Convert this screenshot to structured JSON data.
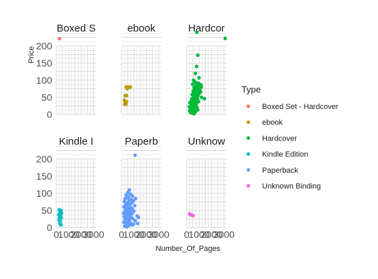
{
  "chart_data": {
    "type": "scatter",
    "xlabel": "Number_Of_Pages",
    "ylabel": "Price",
    "xlim": [
      0,
      3200
    ],
    "ylim": [
      0,
      240
    ],
    "yticks": [
      0,
      50,
      100,
      150,
      200
    ],
    "xtick_labels_shown": [
      "0",
      "1000",
      "2000",
      "3000"
    ],
    "grid": true,
    "legend_title": "Type",
    "legend_position": "right",
    "panels": [
      {
        "name": "Boxed Set - Hardcover",
        "strip": "Boxed S",
        "color": "#F8766D",
        "points": [
          [
            260,
            221
          ]
        ]
      },
      {
        "name": "ebook",
        "strip": "ebook",
        "color": "#B79F00",
        "points": [
          [
            380,
            80
          ],
          [
            500,
            80
          ],
          [
            600,
            80
          ],
          [
            720,
            80
          ],
          [
            480,
            75
          ],
          [
            300,
            55
          ],
          [
            420,
            55
          ],
          [
            240,
            42
          ],
          [
            300,
            37
          ],
          [
            420,
            37
          ],
          [
            260,
            30
          ],
          [
            360,
            30
          ]
        ]
      },
      {
        "name": "Hardcover",
        "strip": "Hardcor",
        "color": "#00BA38",
        "points": [
          [
            820,
            240
          ],
          [
            3100,
            222
          ],
          [
            900,
            173
          ],
          [
            800,
            140
          ],
          [
            700,
            120
          ],
          [
            1000,
            107
          ],
          [
            560,
            100
          ],
          [
            640,
            95
          ],
          [
            860,
            92
          ],
          [
            1000,
            90
          ],
          [
            480,
            88
          ],
          [
            1160,
            86
          ],
          [
            740,
            84
          ],
          [
            900,
            82
          ],
          [
            1180,
            80
          ],
          [
            600,
            78
          ],
          [
            820,
            76
          ],
          [
            1060,
            74
          ],
          [
            700,
            72
          ],
          [
            960,
            70
          ],
          [
            520,
            68
          ],
          [
            1120,
            66
          ],
          [
            800,
            64
          ],
          [
            620,
            62
          ],
          [
            1000,
            60
          ],
          [
            440,
            58
          ],
          [
            740,
            56
          ],
          [
            900,
            54
          ],
          [
            560,
            52
          ],
          [
            1200,
            50
          ],
          [
            1440,
            46
          ],
          [
            680,
            48
          ],
          [
            420,
            46
          ],
          [
            880,
            44
          ],
          [
            520,
            42
          ],
          [
            760,
            40
          ],
          [
            340,
            38
          ],
          [
            960,
            38
          ],
          [
            600,
            36
          ],
          [
            260,
            34
          ],
          [
            800,
            32
          ],
          [
            460,
            30
          ],
          [
            700,
            28
          ],
          [
            360,
            26
          ],
          [
            560,
            24
          ],
          [
            820,
            22
          ],
          [
            220,
            22
          ],
          [
            480,
            20
          ],
          [
            640,
            18
          ],
          [
            300,
            16
          ],
          [
            900,
            14
          ],
          [
            400,
            12
          ],
          [
            560,
            10
          ],
          [
            240,
            10
          ],
          [
            720,
            8
          ],
          [
            320,
            6
          ],
          [
            460,
            4
          ],
          [
            600,
            2
          ]
        ]
      },
      {
        "name": "Kindle Edition",
        "strip": "Kindle I",
        "color": "#00BFC4",
        "points": [
          [
            240,
            52
          ],
          [
            380,
            50
          ],
          [
            300,
            46
          ],
          [
            420,
            42
          ],
          [
            200,
            38
          ],
          [
            340,
            36
          ],
          [
            260,
            30
          ],
          [
            400,
            28
          ],
          [
            220,
            22
          ],
          [
            320,
            18
          ],
          [
            280,
            12
          ],
          [
            360,
            8
          ]
        ]
      },
      {
        "name": "Paperback",
        "strip": "Paperb",
        "color": "#619CFF",
        "points": [
          [
            1100,
            211
          ],
          [
            640,
            110
          ],
          [
            500,
            102
          ],
          [
            720,
            98
          ],
          [
            380,
            95
          ],
          [
            900,
            92
          ],
          [
            560,
            90
          ],
          [
            440,
            88
          ],
          [
            1140,
            85
          ],
          [
            300,
            84
          ],
          [
            780,
            82
          ],
          [
            640,
            80
          ],
          [
            960,
            78
          ],
          [
            240,
            76
          ],
          [
            520,
            74
          ],
          [
            840,
            72
          ],
          [
            400,
            70
          ],
          [
            680,
            68
          ],
          [
            320,
            66
          ],
          [
            1060,
            64
          ],
          [
            560,
            62
          ],
          [
            200,
            60
          ],
          [
            760,
            58
          ],
          [
            440,
            56
          ],
          [
            880,
            54
          ],
          [
            600,
            52
          ],
          [
            300,
            50
          ],
          [
            1000,
            48
          ],
          [
            700,
            46
          ],
          [
            460,
            44
          ],
          [
            180,
            42
          ],
          [
            840,
            40
          ],
          [
            560,
            38
          ],
          [
            340,
            36
          ],
          [
            1260,
            34
          ],
          [
            640,
            34
          ],
          [
            220,
            32
          ],
          [
            760,
            30
          ],
          [
            480,
            28
          ],
          [
            900,
            26
          ],
          [
            300,
            24
          ],
          [
            620,
            22
          ],
          [
            1100,
            20
          ],
          [
            420,
            18
          ],
          [
            200,
            16
          ],
          [
            720,
            14
          ],
          [
            520,
            12
          ],
          [
            340,
            10
          ],
          [
            880,
            8
          ],
          [
            600,
            6
          ],
          [
            260,
            4
          ],
          [
            440,
            2
          ],
          [
            1360,
            30
          ],
          [
            980,
            10
          ],
          [
            1300,
            12
          ]
        ]
      },
      {
        "name": "Unknown Binding",
        "strip": "Unknow",
        "color": "#F564E3",
        "points": [
          [
            240,
            40
          ],
          [
            300,
            38
          ],
          [
            380,
            37
          ],
          [
            460,
            36
          ],
          [
            520,
            35
          ]
        ]
      }
    ]
  }
}
